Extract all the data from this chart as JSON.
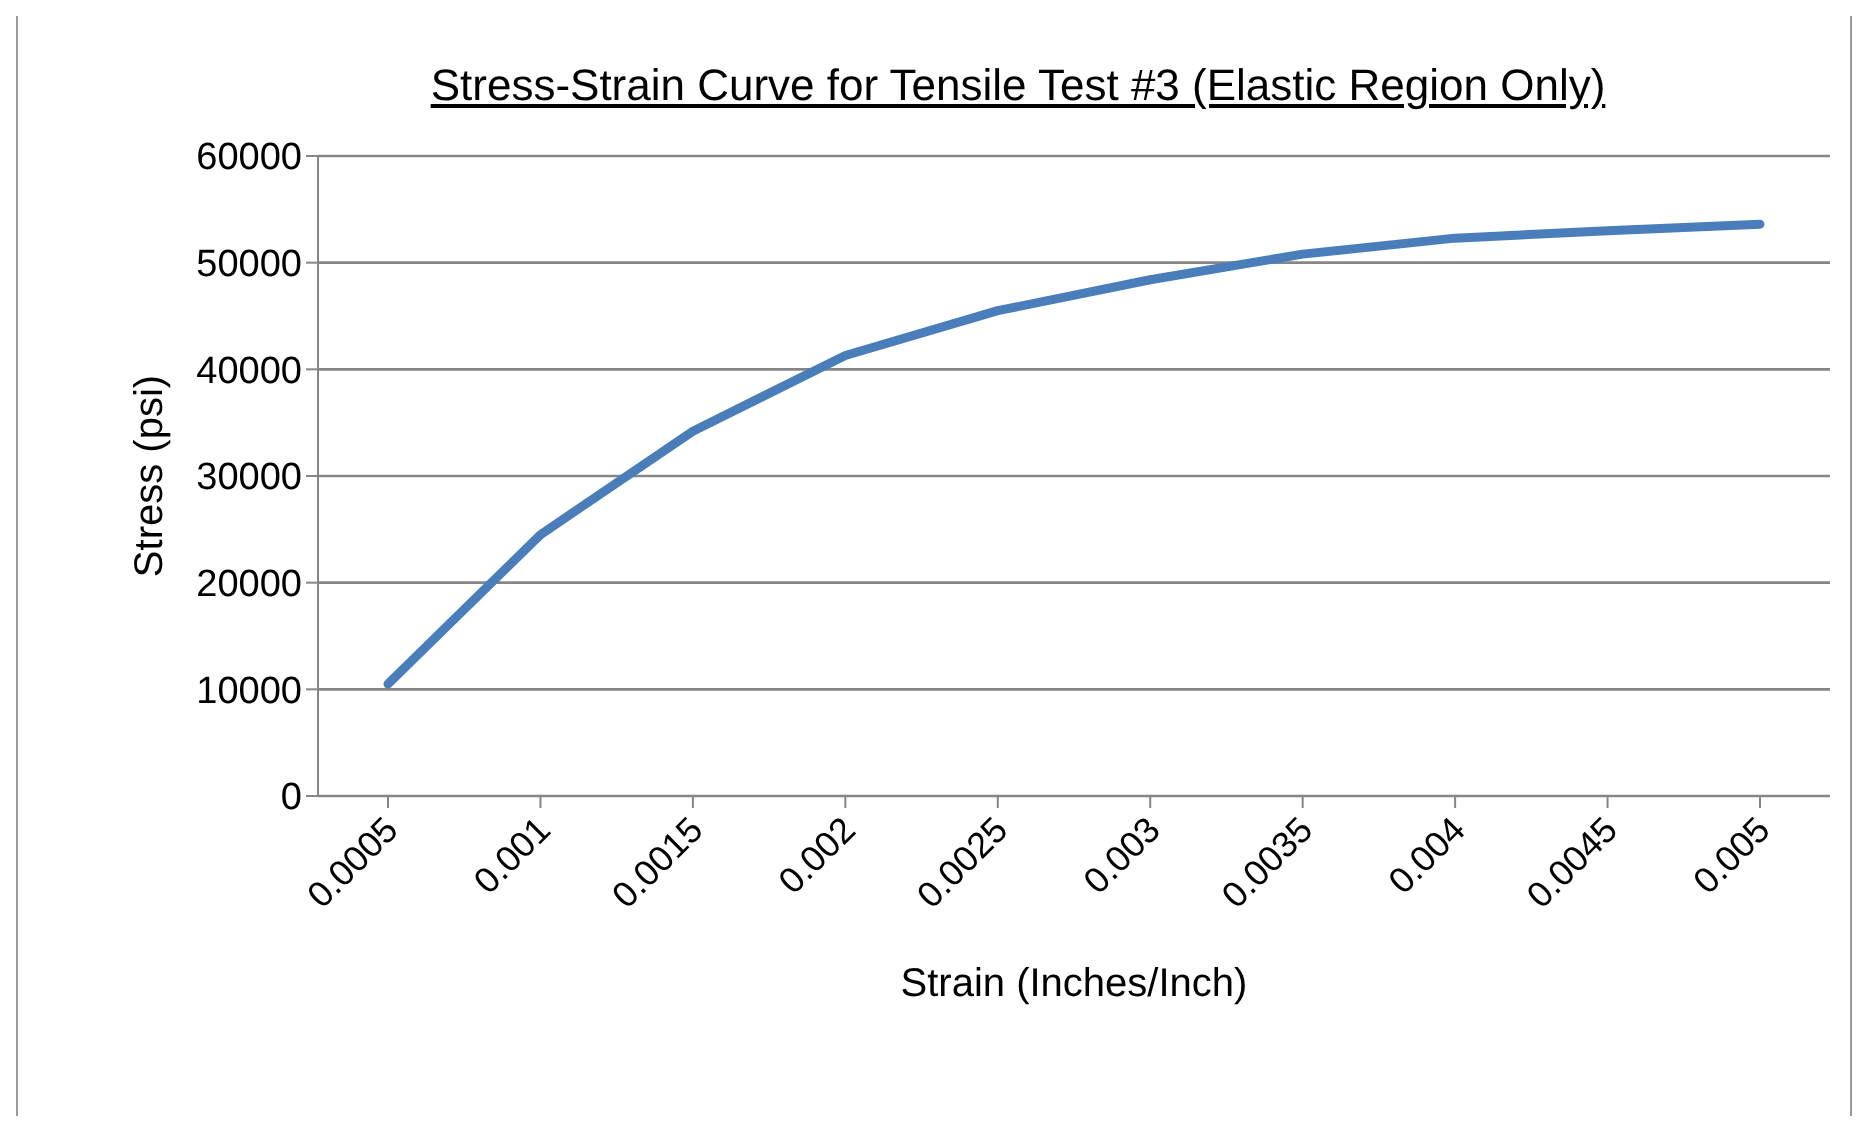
{
  "chart_data": {
    "type": "line",
    "title": "Stress-Strain Curve for Tensile Test #3 (Elastic Region Only)",
    "xlabel": "Strain (Inches/Inch)",
    "ylabel": "Stress (psi)",
    "categories": [
      "0.0005",
      "0.001",
      "0.0015",
      "0.002",
      "0.0025",
      "0.003",
      "0.0035",
      "0.004",
      "0.0045",
      "0.005"
    ],
    "series": [
      {
        "color": "#4a7ebb",
        "values": [
          10500,
          24500,
          34200,
          41300,
          45500,
          48400,
          50800,
          52300,
          53000,
          53600
        ]
      }
    ],
    "ylim": [
      0,
      60000
    ],
    "yticks": [
      0,
      10000,
      20000,
      30000,
      40000,
      50000,
      60000
    ],
    "grid": "y",
    "legend": false,
    "marker": "none",
    "line_style": "solid"
  }
}
